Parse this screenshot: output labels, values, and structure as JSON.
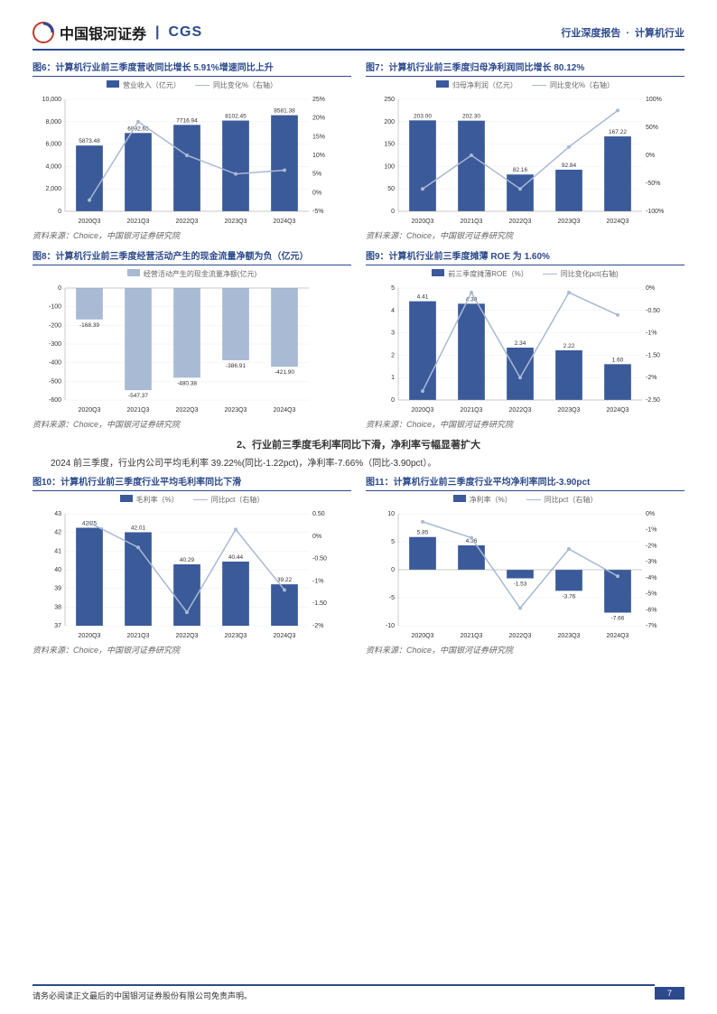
{
  "header": {
    "brand_cn": "中国银河证券",
    "brand_en": "CGS",
    "right_l": "行业深度报告",
    "right_r": "计算机行业"
  },
  "colors": {
    "bar": "#3a5a9a",
    "line": "#a8bad4",
    "hatch": "#a8bad4",
    "border": "#2c4a8c"
  },
  "source_text": "资料来源：Choice，中国银河证券研究院",
  "section": {
    "title": "2、行业前三季度毛利率同比下滑，净利率亏幅显著扩大",
    "text": "2024 前三季度，行业内公司平均毛利率 39.22%(同比-1.22pct)，净利率-7.66%（同比-3.90pct）。"
  },
  "footer": {
    "disclaimer": "请务必阅读正文最后的中国银河证券股份有限公司免责声明。",
    "page": "7"
  },
  "charts": {
    "c6": {
      "title": "图6：计算机行业前三季度营收同比增长 5.91%增速同比上升",
      "leg1": "营业收入（亿元）",
      "leg2": "同比变化%（右轴）",
      "cats": [
        "2020Q3",
        "2021Q3",
        "2022Q3",
        "2023Q3",
        "2024Q3"
      ],
      "vals": [
        5873.48,
        6992.65,
        7716.94,
        8102.45,
        8581.38
      ],
      "line": [
        -2,
        19,
        10,
        5,
        6
      ],
      "ylim": [
        0,
        10000
      ],
      "yticks": [
        0,
        2000,
        4000,
        6000,
        8000,
        10000
      ],
      "y2lim": [
        -5,
        25
      ],
      "y2ticks": [
        -5,
        0,
        5,
        10,
        15,
        20,
        25
      ]
    },
    "c7": {
      "title": "图7：计算机行业前三季度归母净利润同比增长 80.12%",
      "leg1": "归母净利润（亿元）",
      "leg2": "同比变化%（右轴）",
      "cats": [
        "2020Q3",
        "2021Q3",
        "2022Q3",
        "2023Q3",
        "2024Q3"
      ],
      "vals": [
        203.0,
        202.3,
        82.16,
        92.84,
        167.22
      ],
      "line": [
        -60,
        0,
        -60,
        15,
        80
      ],
      "ylim": [
        0,
        250
      ],
      "yticks": [
        0,
        50,
        100,
        150,
        200,
        250
      ],
      "y2lim": [
        -100,
        100
      ],
      "y2ticks": [
        -100,
        -50,
        0,
        50,
        100
      ]
    },
    "c8": {
      "title": "图8：计算机行业前三季度经营活动产生的现金流量净额为负（亿元）",
      "leg1": "经营活动产生的现金流量净额(亿元)",
      "cats": [
        "2020Q3",
        "2021Q3",
        "2022Q3",
        "2023Q3",
        "2024Q3"
      ],
      "vals": [
        -168.39,
        -547.37,
        -480.38,
        -386.91,
        -421.9
      ],
      "ylim": [
        -600,
        0
      ],
      "yticks": [
        -600,
        -500,
        -400,
        -300,
        -200,
        -100,
        0
      ]
    },
    "c9": {
      "title": "图9：计算机行业前三季度摊薄 ROE 为 1.60%",
      "leg1": "前三季度摊薄ROE（%）",
      "leg2": "同比变化pct(右轴)",
      "cats": [
        "2020Q3",
        "2021Q3",
        "2022Q3",
        "2023Q3",
        "2024Q3"
      ],
      "vals": [
        4.41,
        4.3,
        2.34,
        2.22,
        1.6
      ],
      "line": [
        -2.3,
        -0.1,
        -2.0,
        -0.1,
        -0.6
      ],
      "ylim": [
        0,
        5
      ],
      "yticks": [
        0,
        1,
        2,
        3,
        4,
        5
      ],
      "y2lim": [
        -2.5,
        0
      ],
      "y2ticks": [
        -2.5,
        -2.0,
        -1.5,
        -1.0,
        -0.5,
        0.0
      ]
    },
    "c10": {
      "title": "图10：计算机行业前三季度行业平均毛利率同比下滑",
      "leg1": "毛利率（%）",
      "leg2": "同比pct（右轴）",
      "cats": [
        "2020Q3",
        "2021Q3",
        "2022Q3",
        "2023Q3",
        "2024Q3"
      ],
      "vals": [
        42.25,
        42.01,
        40.29,
        40.44,
        39.22
      ],
      "line": [
        0.3,
        -0.25,
        -1.7,
        0.15,
        -1.2
      ],
      "ylim": [
        37,
        43
      ],
      "yticks": [
        37,
        38,
        39,
        40,
        41,
        42,
        43
      ],
      "y2lim": [
        -2,
        0.5
      ],
      "y2ticks": [
        -2.0,
        -1.5,
        -1.0,
        -0.5,
        0.0,
        0.5
      ]
    },
    "c11": {
      "title": "图11：计算机行业前三季度行业平均净利率同比-3.90pct",
      "leg1": "净利率（%）",
      "leg2": "同比pct（右轴）",
      "cats": [
        "2020Q3",
        "2021Q3",
        "2022Q3",
        "2023Q3",
        "2024Q3"
      ],
      "vals": [
        5.85,
        4.36,
        -1.53,
        -3.76,
        -7.66
      ],
      "line": [
        -0.5,
        -1.5,
        -5.9,
        -2.2,
        -3.9
      ],
      "ylim": [
        -10,
        10
      ],
      "yticks": [
        -10,
        -5,
        0,
        5,
        10
      ],
      "y2lim": [
        -7,
        0
      ],
      "y2ticks": [
        -7,
        -6,
        -5,
        -4,
        -3,
        -2,
        -1,
        0
      ]
    }
  }
}
